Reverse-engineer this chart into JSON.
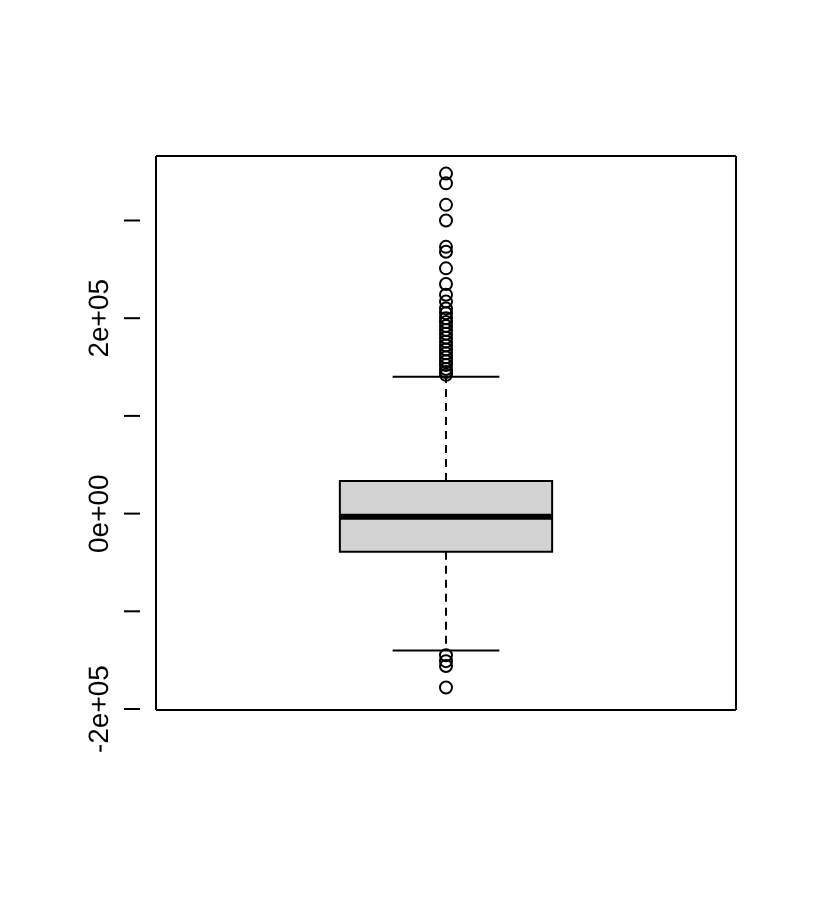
{
  "chart_data": {
    "type": "box",
    "categories": [
      null
    ],
    "boxes": [
      {
        "low": -140000,
        "q1": -39000,
        "median": -3300,
        "q3": 33500,
        "high": 140000,
        "outliers": [
          348000,
          338000,
          316000,
          300000,
          273000,
          268000,
          251000,
          235000,
          224000,
          217000,
          210000,
          205000,
          200000,
          196000,
          192000,
          188000,
          184000,
          180000,
          176000,
          172000,
          168000,
          164000,
          160000,
          156000,
          152000,
          148000,
          145000,
          142000,
          -145000,
          -151000,
          -156000,
          -178000
        ]
      }
    ],
    "color": "#d3d3d3",
    "ylim": [
      -201000,
      366000
    ],
    "yticks": [
      {
        "value": -200000,
        "label": "-2e+05"
      },
      {
        "value": -100000,
        "label": null
      },
      {
        "value": 0,
        "label": "0e+00"
      },
      {
        "value": 100000,
        "label": null
      },
      {
        "value": 200000,
        "label": "2e+05"
      },
      {
        "value": 300000,
        "label": null
      }
    ],
    "tick_labels": "y",
    "grid": false
  }
}
